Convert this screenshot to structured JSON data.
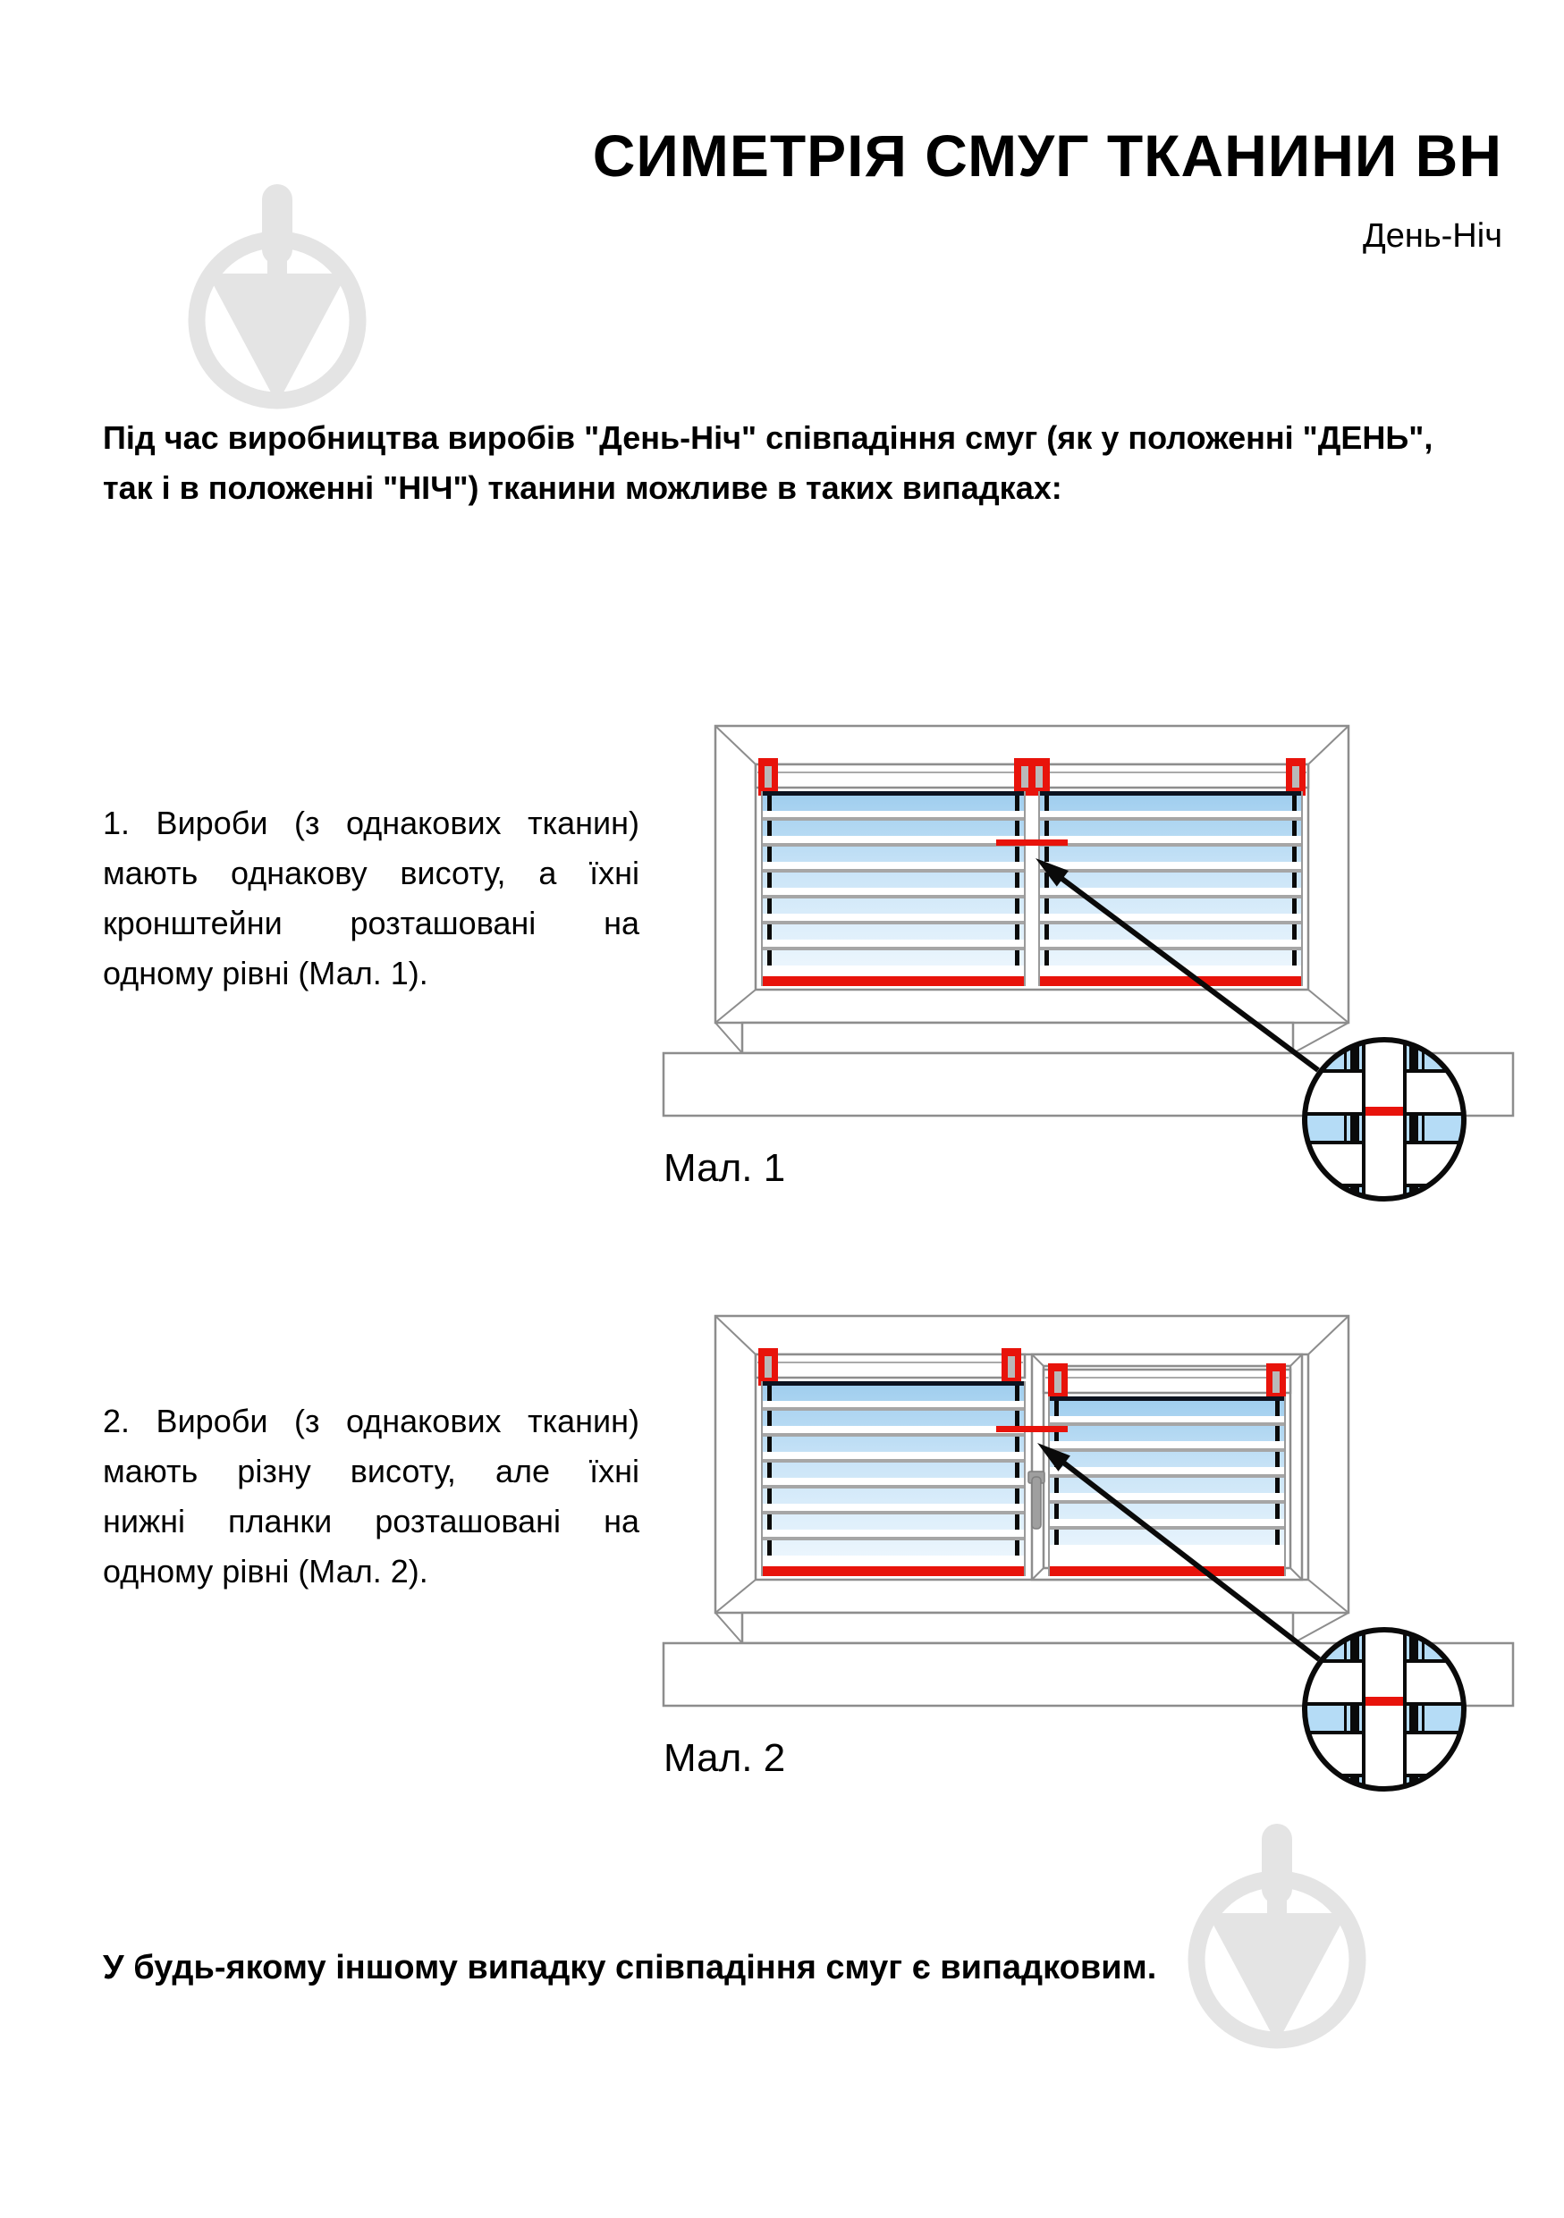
{
  "header": {
    "title": "СИМЕТРІЯ СМУГ ТКАНИНИ ВН",
    "subtitle": "День-Ніч"
  },
  "intro": {
    "line1": "Під час виробництва виробів \"День-Ніч\" співпадіння смуг (як у положенні \"ДЕНЬ\",",
    "line2": "так і в положенні \"НІЧ\") тканини можливе в таких випадках:"
  },
  "items": [
    {
      "lines": [
        "1. Вироби (з однакових тканин)",
        "мають однакову висоту, а їхні",
        "кронштейни розташовані на",
        "одному рівні (Мал. 1)."
      ],
      "caption": "Мал. 1"
    },
    {
      "lines": [
        "2. Вироби (з однакових тканин)",
        "мають різну висоту, але їхні",
        "нижні планки розташовані на",
        "одному рівні (Мал. 2)."
      ],
      "caption": "Мал. 2"
    }
  ],
  "footer": {
    "text": "У будь-якому іншому випадку співпадіння смуг є випадковим."
  },
  "colors": {
    "accent_red": "#e8130b",
    "navy": "#0c1320",
    "slat_gray": "#a6a6a6",
    "frame_gray": "#8d8d8d",
    "edge_gray": "#9a9a9a",
    "stripe_blue": "#9ecdee",
    "stripe_blue_mid": "#cde6f8",
    "stripe_blue_light": "#f2f9fe",
    "magnifier_blue": "#b5dcf6",
    "watermark_gray": "#e4e4e4",
    "black": "#0a0a0a"
  }
}
